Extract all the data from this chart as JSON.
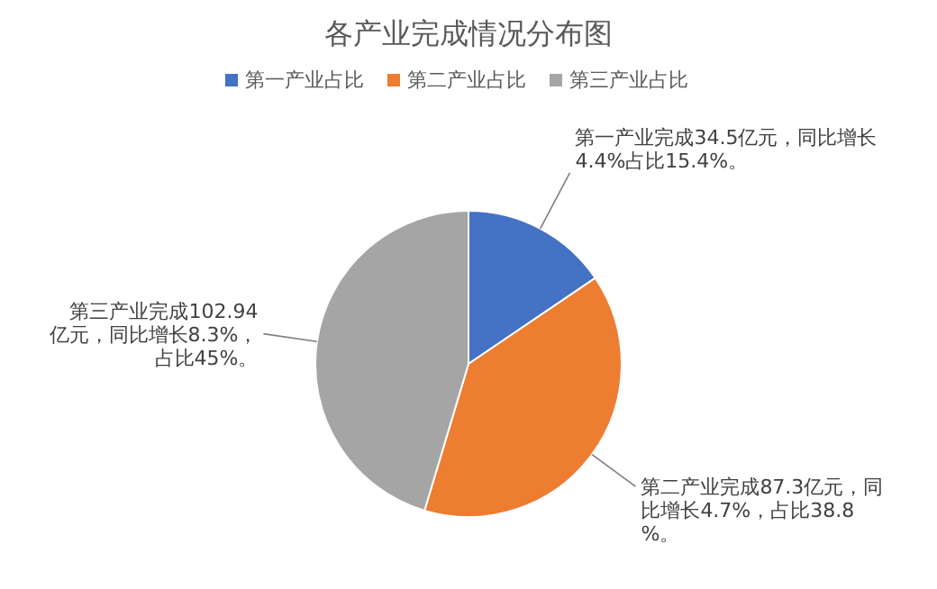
{
  "chart_data": {
    "type": "pie",
    "title": "各产业完成情况分布图",
    "categories": [
      "第一产业占比",
      "第二产业占比",
      "第三产业占比"
    ],
    "values": [
      15.4,
      38.8,
      45
    ],
    "colors": [
      "#4472c4",
      "#ed7d31",
      "#a5a5a5"
    ],
    "value_labels": [
      "第一产业完成34.5亿元，同比增长4.4%占比15.4%。",
      "第二产业完成87.3亿元，同比增长4.7%，占比38.8%。",
      "第三产业完成102.94亿元，同比增长8.3%，占比45%。"
    ],
    "legend": "top"
  }
}
